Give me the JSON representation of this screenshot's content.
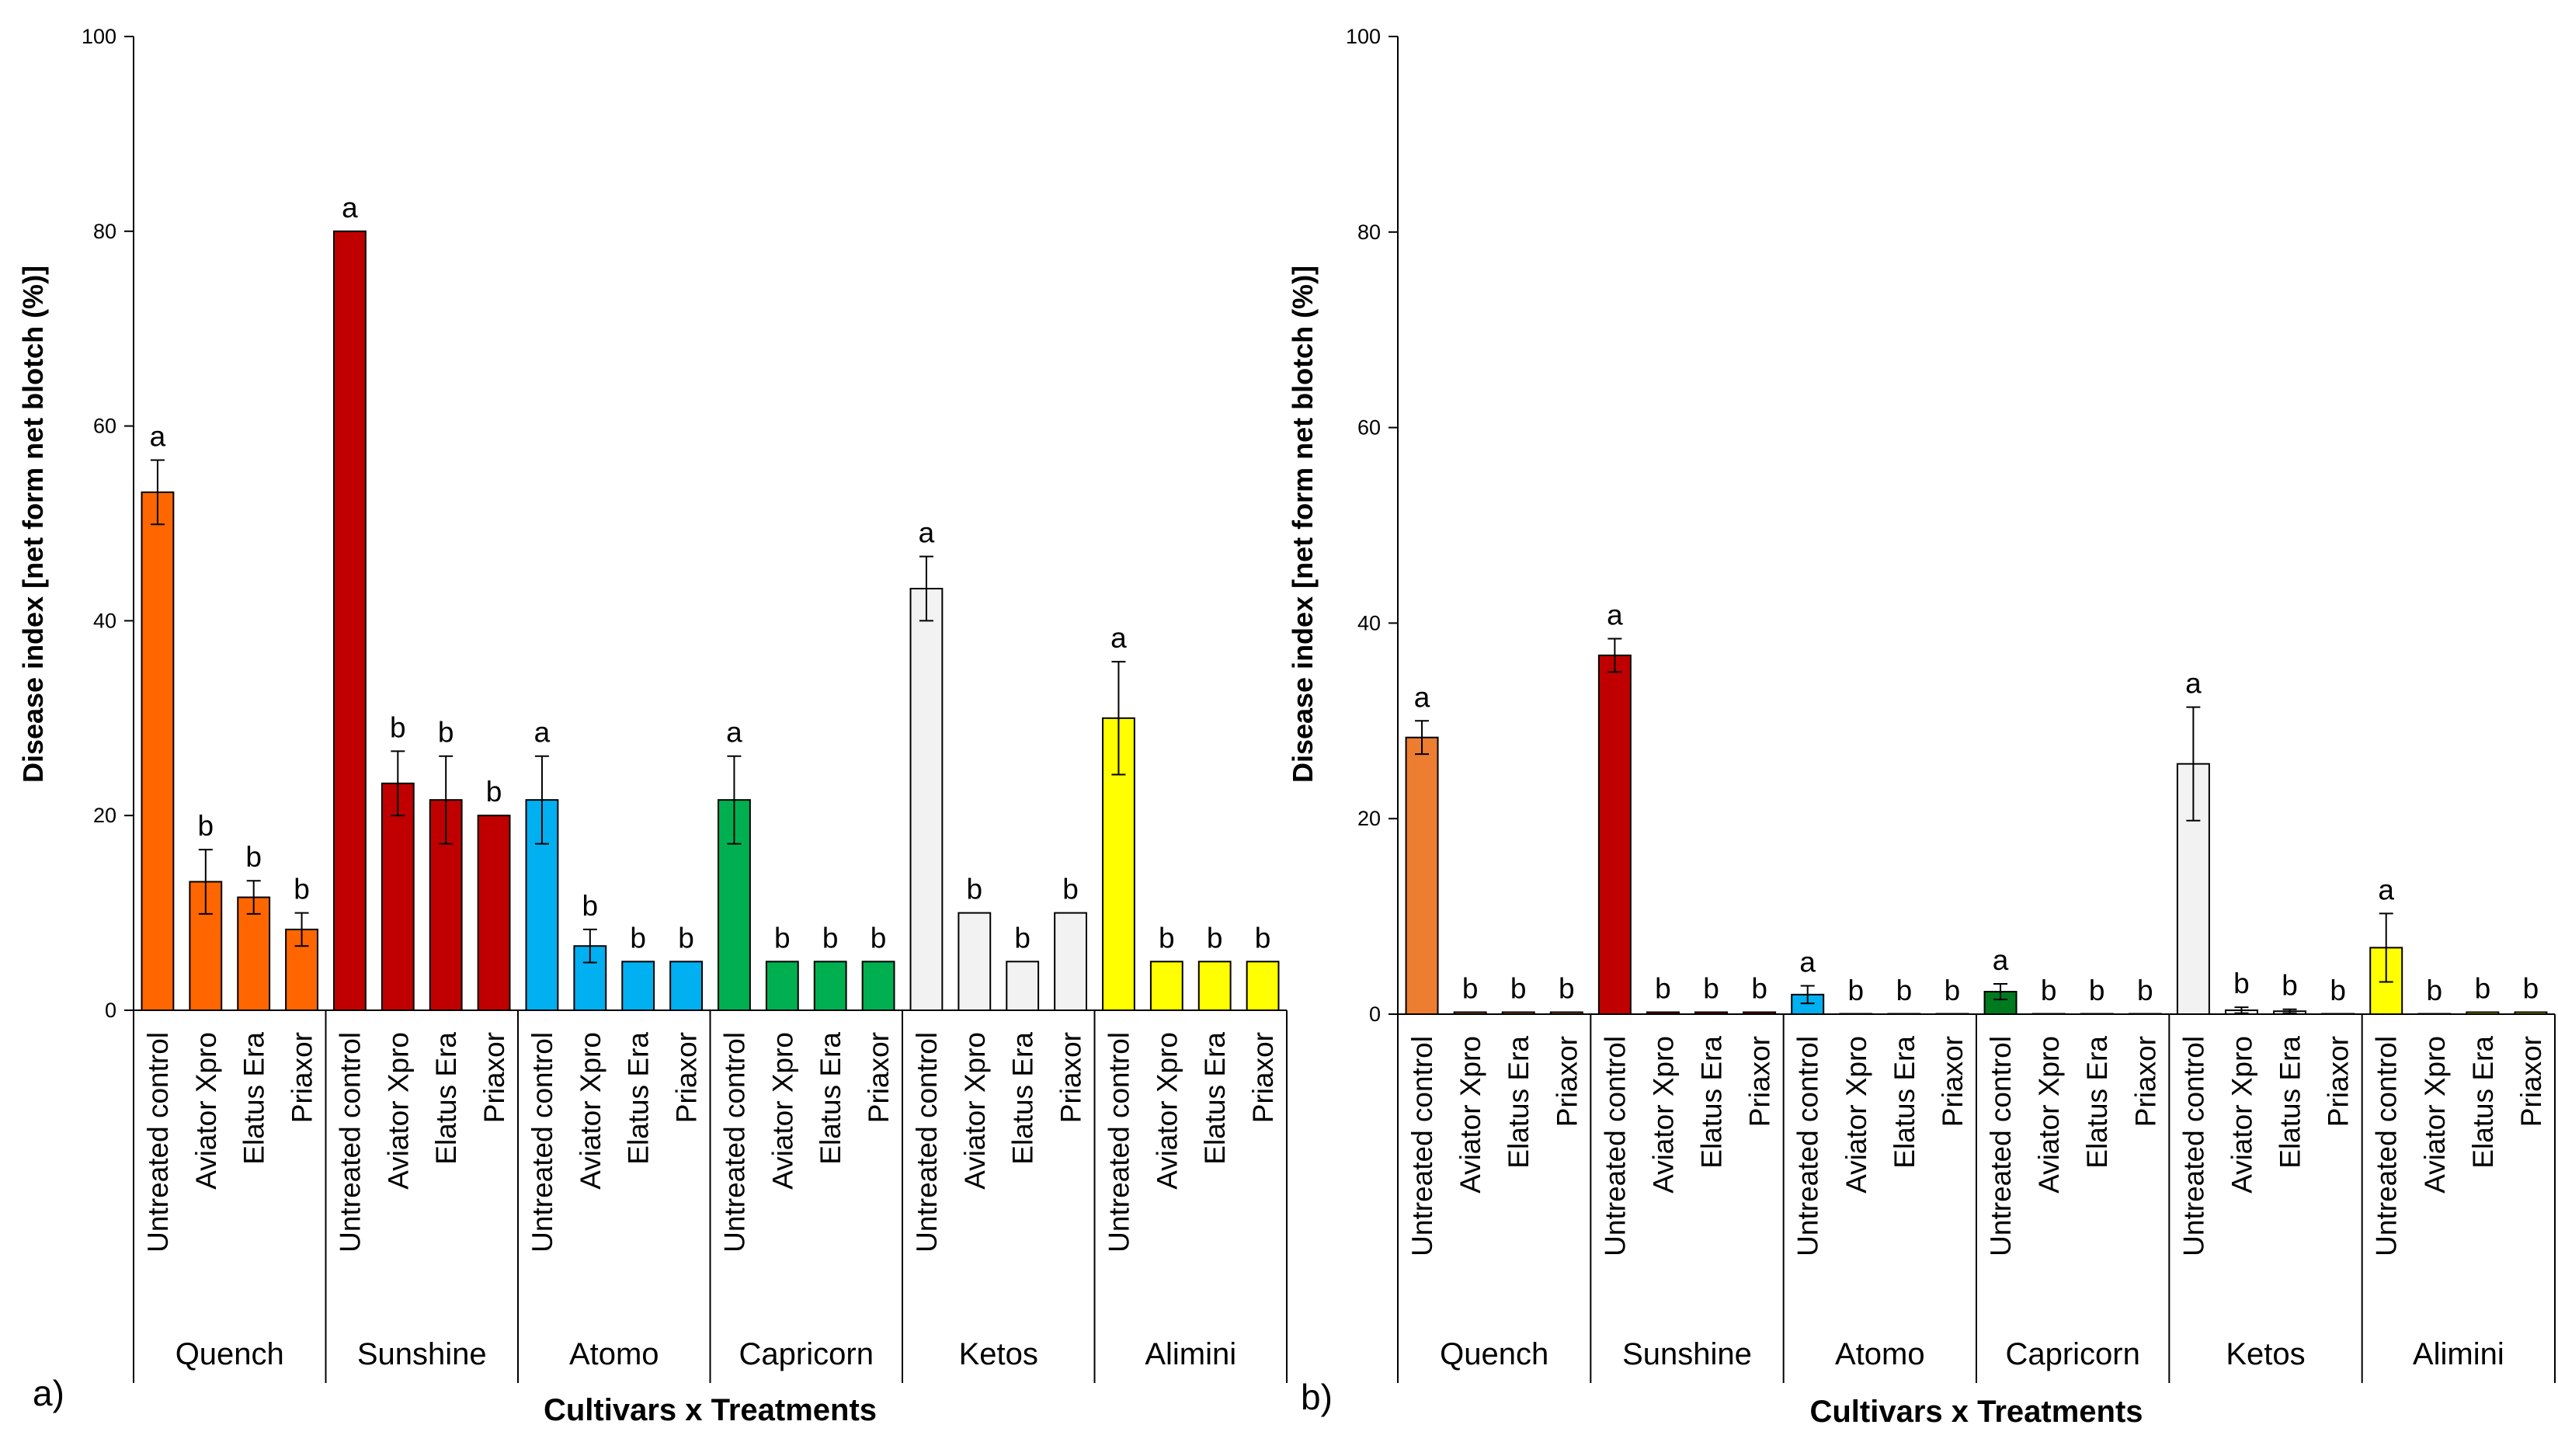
{
  "chart_data": [
    {
      "type": "bar",
      "panel_label": "a)",
      "title": "",
      "xlabel": "Cultivars x Treatments",
      "ylabel": "Disease index [net form net blotch (%)]",
      "ylim": [
        0,
        100
      ],
      "yticks": [
        "0",
        "20",
        "40",
        "60",
        "80",
        "100"
      ],
      "treatments": [
        "Untreated control",
        "Aviator Xpro",
        "Elatus Era",
        "Priaxor"
      ],
      "groups": [
        {
          "name": "Quench",
          "color": "#ff6600",
          "values": [
            53.2,
            13.2,
            11.6,
            8.3
          ],
          "errors": [
            3.3,
            3.3,
            1.7,
            1.7
          ],
          "labels": [
            "a",
            "b",
            "b",
            "b"
          ]
        },
        {
          "name": "Sunshine",
          "color": "#c00000",
          "values": [
            80,
            23.3,
            21.6,
            20
          ],
          "errors": [
            0,
            3.3,
            4.5,
            0
          ],
          "labels": [
            "a",
            "b",
            "b",
            "b"
          ]
        },
        {
          "name": "Atomo",
          "color": "#00b0f0",
          "values": [
            21.6,
            6.6,
            5,
            5
          ],
          "errors": [
            4.5,
            1.7,
            0,
            0
          ],
          "labels": [
            "a",
            "b",
            "b",
            "b"
          ]
        },
        {
          "name": "Capricorn",
          "color": "#00b050",
          "values": [
            21.6,
            5,
            5,
            5
          ],
          "errors": [
            4.5,
            0,
            0,
            0
          ],
          "labels": [
            "a",
            "b",
            "b",
            "b"
          ]
        },
        {
          "name": "Ketos",
          "color": "#f2f2f2",
          "values": [
            43.3,
            10,
            5,
            10
          ],
          "errors": [
            3.3,
            0,
            0,
            0
          ],
          "labels": [
            "a",
            "b",
            "b",
            "b"
          ]
        },
        {
          "name": "Alimini",
          "color": "#ffff00",
          "values": [
            30,
            5,
            5,
            5
          ],
          "errors": [
            5.8,
            0,
            0,
            0
          ],
          "labels": [
            "a",
            "b",
            "b",
            "b"
          ]
        }
      ]
    },
    {
      "type": "bar",
      "panel_label": "b)",
      "title": "",
      "xlabel": "Cultivars x Treatments",
      "ylabel": "Disease index [net form net blotch (%)]",
      "ylim": [
        0,
        100
      ],
      "yticks": [
        "0",
        "20",
        "40",
        "60",
        "80",
        "100"
      ],
      "treatments": [
        "Untreated control",
        "Aviator Xpro",
        "Elatus Era",
        "Priaxor"
      ],
      "groups": [
        {
          "name": "Quench",
          "color": "#ed7d31",
          "values": [
            28.3,
            0.2,
            0.2,
            0.2
          ],
          "errors": [
            1.7,
            0,
            0,
            0
          ],
          "labels": [
            "a",
            "b",
            "b",
            "b"
          ]
        },
        {
          "name": "Sunshine",
          "color": "#c00000",
          "values": [
            36.7,
            0.2,
            0.2,
            0.2
          ],
          "errors": [
            1.7,
            0,
            0,
            0
          ],
          "labels": [
            "a",
            "b",
            "b",
            "b"
          ]
        },
        {
          "name": "Atomo",
          "color": "#00b0f0",
          "values": [
            2,
            0,
            0,
            0
          ],
          "errors": [
            0.9,
            0,
            0,
            0
          ],
          "labels": [
            "a",
            "b",
            "b",
            "b"
          ]
        },
        {
          "name": "Capricorn",
          "color": "#007a1e",
          "values": [
            2.3,
            0,
            0,
            0
          ],
          "errors": [
            0.8,
            0,
            0,
            0
          ],
          "labels": [
            "a",
            "b",
            "b",
            "b"
          ]
        },
        {
          "name": "Ketos",
          "color": "#f2f2f2",
          "values": [
            25.6,
            0.4,
            0.3,
            0
          ],
          "errors": [
            5.8,
            0.3,
            0.2,
            0
          ],
          "labels": [
            "a",
            "b",
            "b",
            "b"
          ]
        },
        {
          "name": "Alimini",
          "color": "#ffff00",
          "values": [
            6.8,
            0,
            0.2,
            0.2
          ],
          "errors": [
            3.5,
            0,
            0,
            0
          ],
          "labels": [
            "a",
            "b",
            "b",
            "b"
          ]
        }
      ]
    }
  ]
}
